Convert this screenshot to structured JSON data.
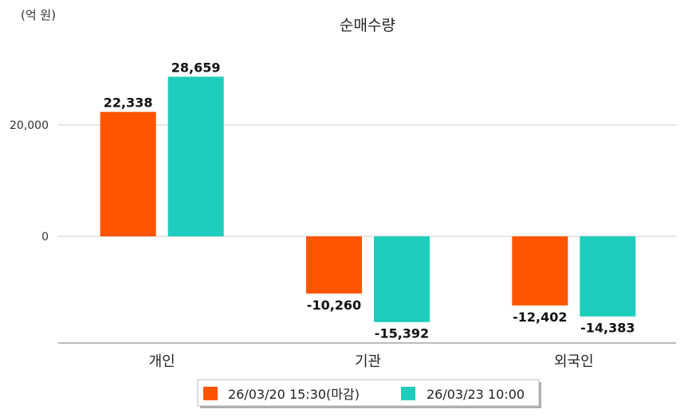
{
  "chart_data": {
    "type": "bar",
    "title": "순매수량",
    "unit_label": "(억 원)",
    "categories": [
      "개인",
      "기관",
      "외국인"
    ],
    "series": [
      {
        "name": "26/03/20 15:30(마감)",
        "color": "#ff5500",
        "values": [
          22338,
          -10260,
          -12402
        ],
        "labels": [
          "22,338",
          "-10,260",
          "-12,402"
        ]
      },
      {
        "name": "26/03/23 10:00",
        "color": "#1ecdbc",
        "values": [
          28659,
          -15392,
          -14383
        ],
        "labels": [
          "28,659",
          "-15,392",
          "-14,383"
        ]
      }
    ],
    "yticks": [
      0,
      20000
    ],
    "ytick_labels": [
      "0",
      "20,000"
    ],
    "ylim": [
      -19143,
      33857
    ],
    "grid": true,
    "legend": "bottom-center"
  }
}
